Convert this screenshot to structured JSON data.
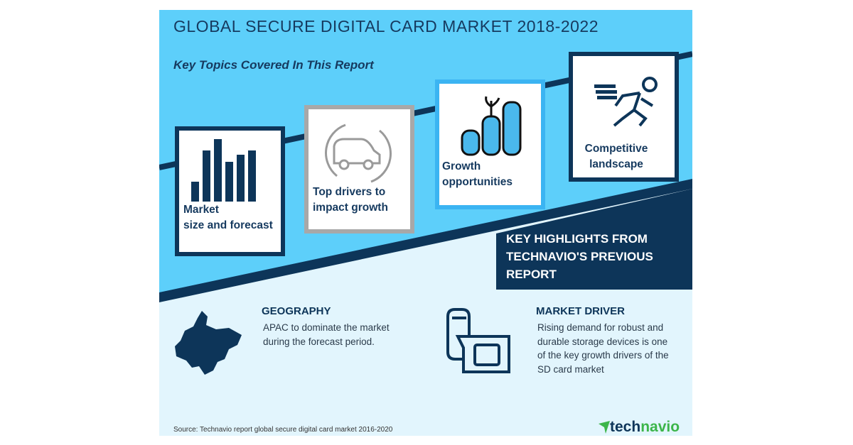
{
  "title": "GLOBAL SECURE DIGITAL CARD MARKET 2018-2022",
  "subtitle": "Key Topics Covered In This Report",
  "topics": [
    {
      "label_line1": "Market",
      "label_line2": "size and forecast",
      "icon": "bar-chart-icon"
    },
    {
      "label_line1": "Top drivers to",
      "label_line2": "impact growth",
      "icon": "car-cycle-icon"
    },
    {
      "label_line1": "Growth",
      "label_line2": "opportunities",
      "icon": "coin-stacks-icon"
    },
    {
      "label_line1": "Competitive",
      "label_line2": "landscape",
      "icon": "running-man-icon"
    }
  ],
  "highlights": {
    "line1": "KEY HIGHLIGHTS FROM",
    "line2": "TECHNAVIO'S PREVIOUS",
    "line3": "REPORT"
  },
  "geography": {
    "heading": "GEOGRAPHY",
    "line1": "APAC to dominate the market",
    "line2": "during the forecast period.",
    "icon": "asia-map-icon"
  },
  "market_driver": {
    "heading": "MARKET DRIVER",
    "line1": "Rising demand for robust and",
    "line2": "durable storage devices is one",
    "line3": "of the key growth drivers of the",
    "line4": "SD card market",
    "icon": "sd-card-icon"
  },
  "source": "Source: Technavio report global secure digital card market 2016-2020",
  "logo": {
    "part1": "tech",
    "part2": "navio"
  },
  "colors": {
    "sky": "#5dcffa",
    "navy": "#0d3559",
    "pale": "#e2f5fd",
    "green": "#3cb54a"
  }
}
